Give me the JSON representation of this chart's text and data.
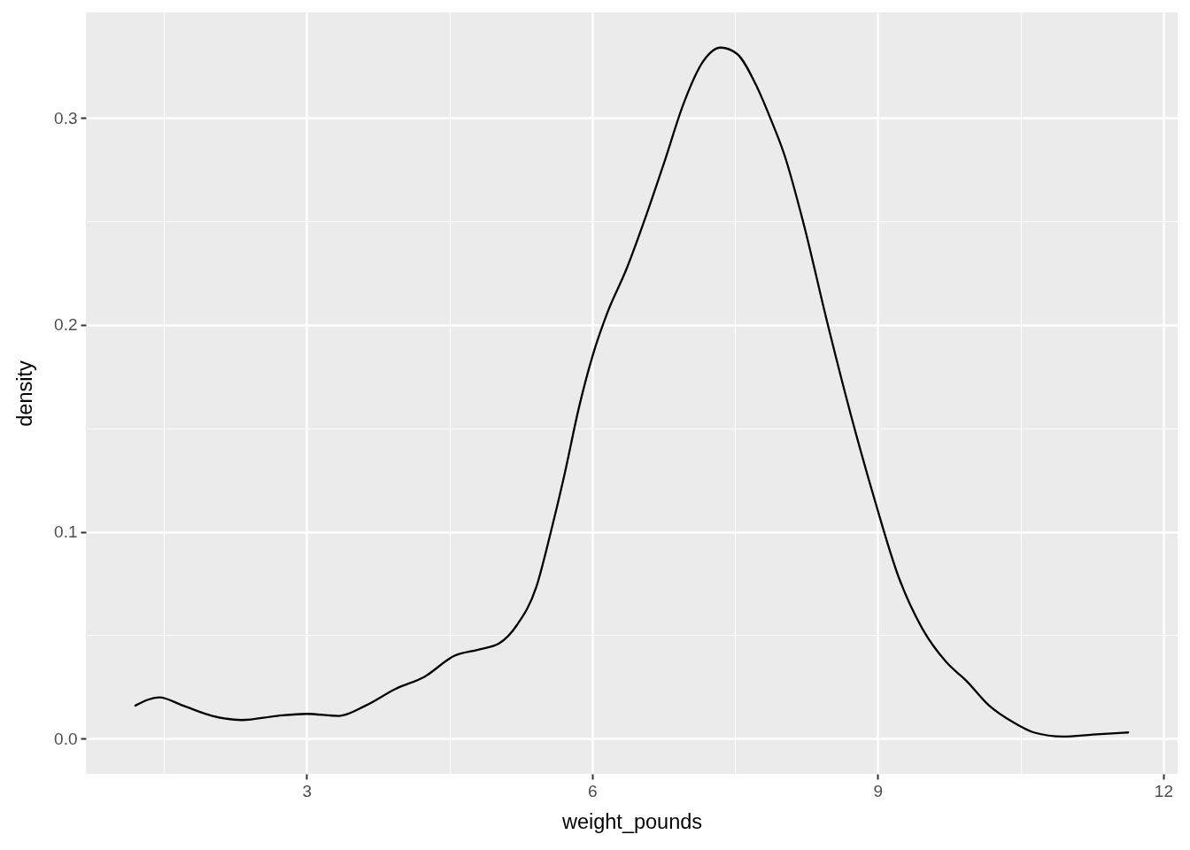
{
  "chart_data": {
    "type": "line",
    "xlabel": "weight_pounds",
    "ylabel": "density",
    "x": [
      1.2,
      1.45,
      1.7,
      2.01,
      2.32,
      2.69,
      3.0,
      3.34,
      3.62,
      3.93,
      4.24,
      4.55,
      4.8,
      5.02,
      5.21,
      5.41,
      5.56,
      5.71,
      5.86,
      6.01,
      6.16,
      6.36,
      6.56,
      6.76,
      6.96,
      7.16,
      7.35,
      7.52,
      7.72,
      7.87,
      8.02,
      8.22,
      8.47,
      8.72,
      8.97,
      9.22,
      9.47,
      9.72,
      9.93,
      10.17,
      10.42,
      10.64,
      10.95,
      11.26,
      11.63
    ],
    "values": [
      0.016,
      0.02,
      0.016,
      0.011,
      0.009,
      0.011,
      0.012,
      0.011,
      0.016,
      0.024,
      0.03,
      0.04,
      0.043,
      0.046,
      0.055,
      0.073,
      0.099,
      0.128,
      0.16,
      0.186,
      0.206,
      0.227,
      0.252,
      0.279,
      0.307,
      0.327,
      0.334,
      0.331,
      0.316,
      0.3,
      0.282,
      0.249,
      0.201,
      0.156,
      0.115,
      0.078,
      0.053,
      0.037,
      0.028,
      0.016,
      0.008,
      0.003,
      0.001,
      0.002,
      0.003
    ],
    "color": "#000000",
    "xlim": [
      0.68,
      12.15
    ],
    "ylim": [
      -0.017,
      0.351
    ],
    "xticks": [
      {
        "value": 1.5,
        "label": null
      },
      3,
      {
        "value": 4.5,
        "label": null
      },
      6,
      {
        "value": 7.5,
        "label": null
      },
      9,
      {
        "value": 10.5,
        "label": null
      },
      12
    ],
    "yticks": [
      {
        "value": 0,
        "label": "0.0"
      },
      {
        "value": 0.05,
        "label": null
      },
      0.1,
      {
        "value": 0.15,
        "label": null
      },
      0.2,
      {
        "value": 0.25,
        "label": null
      },
      0.3
    ],
    "grid": true
  }
}
